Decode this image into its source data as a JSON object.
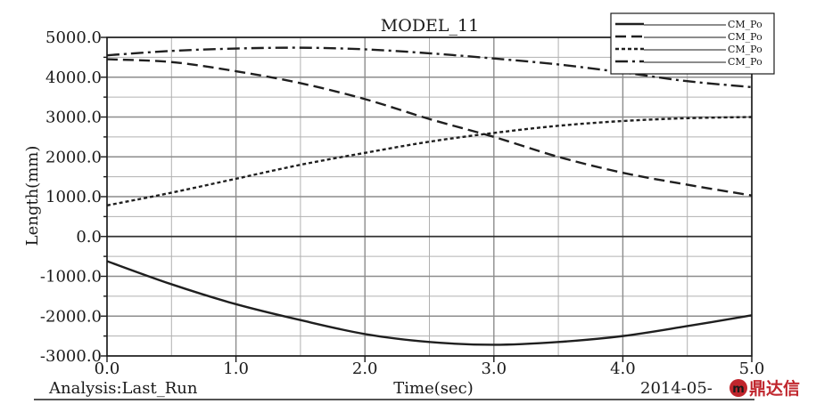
{
  "chart_data": {
    "type": "line",
    "title": "MODEL_11",
    "xlabel": "Time(sec)",
    "ylabel": "Length(mm)",
    "xlim": [
      0,
      5
    ],
    "ylim": [
      -3000,
      5000
    ],
    "x_ticks": [
      0,
      1,
      2,
      3,
      4,
      5
    ],
    "x_tick_labels": [
      "0.0",
      "1.0",
      "2.0",
      "3.0",
      "4.0",
      "5.0"
    ],
    "y_ticks": [
      -3000,
      -2000,
      -1000,
      0,
      1000,
      2000,
      3000,
      4000,
      5000
    ],
    "y_tick_labels": [
      "-3000.0",
      "-2000.0",
      "-1000.0",
      "0.0",
      "1000.0",
      "2000.0",
      "3000.0",
      "4000.0",
      "5000.0"
    ],
    "grid": true,
    "legend_position": "top-right",
    "footer_left": "Analysis:Last_Run",
    "footer_right": "2014-05-",
    "watermark": "鼎达信",
    "x": [
      0,
      0.5,
      1,
      1.5,
      2,
      2.5,
      3,
      3.5,
      4,
      4.5,
      5
    ],
    "series": [
      {
        "name": "CM_Po",
        "style": "solid",
        "values": [
          -620,
          -1200,
          -1700,
          -2100,
          -2450,
          -2650,
          -2720,
          -2650,
          -2500,
          -2250,
          -1980
        ]
      },
      {
        "name": "CM_Po",
        "style": "dashed",
        "values": [
          4450,
          4380,
          4150,
          3850,
          3450,
          2950,
          2500,
          2000,
          1600,
          1300,
          1030
        ]
      },
      {
        "name": "CM_Po",
        "style": "dotted",
        "values": [
          780,
          1100,
          1450,
          1800,
          2100,
          2380,
          2600,
          2780,
          2900,
          2970,
          3000
        ]
      },
      {
        "name": "CM_Po",
        "style": "dashdot",
        "values": [
          4550,
          4660,
          4720,
          4740,
          4700,
          4600,
          4470,
          4320,
          4120,
          3900,
          3750
        ]
      }
    ]
  }
}
